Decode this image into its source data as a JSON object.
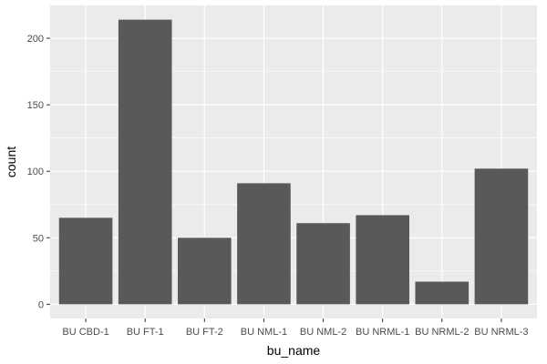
{
  "chart_data": {
    "type": "bar",
    "categories": [
      "BU CBD-1",
      "BU FT-1",
      "BU FT-2",
      "BU NML-1",
      "BU NML-2",
      "BU NRML-1",
      "BU NRML-2",
      "BU NRML-3"
    ],
    "values": [
      65,
      214,
      50,
      91,
      61,
      67,
      17,
      102
    ],
    "title": "",
    "xlabel": "bu_name",
    "ylabel": "count",
    "ylim": [
      -10.7,
      224.7
    ],
    "yticks": [
      0,
      50,
      100,
      150,
      200
    ],
    "grid": true,
    "legend": "none"
  },
  "colors": {
    "panel_background": "#ebebeb",
    "grid_major": "#ffffff",
    "bar_fill": "#595959",
    "tick_text": "#4d4d4d",
    "tick_mark": "#333333",
    "axis_title": "#000000"
  }
}
